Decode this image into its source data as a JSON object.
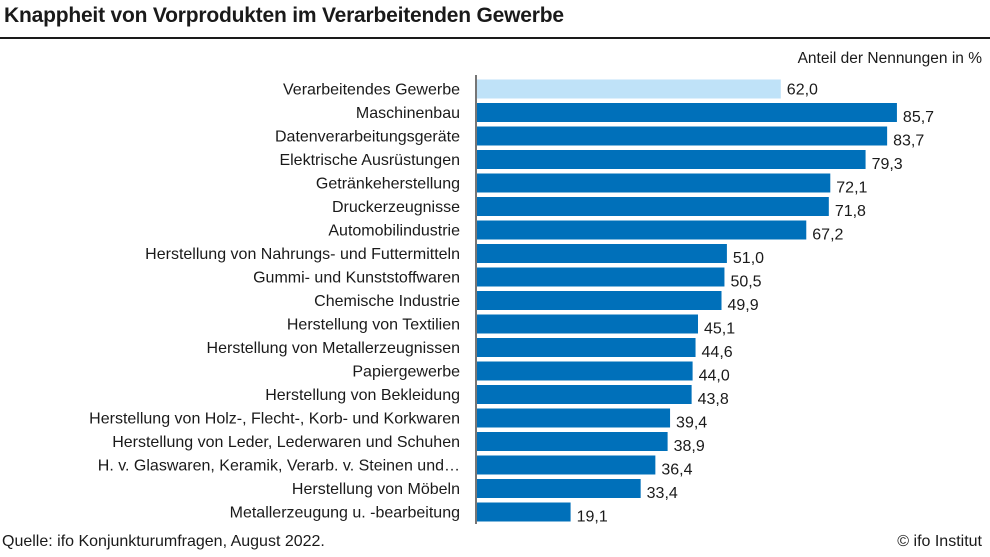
{
  "chart_data": {
    "type": "bar",
    "orientation": "horizontal",
    "title": "Knappheit von Vorprodukten im Verarbeitenden Gewerbe",
    "unit_label": "Anteil der Nennungen in %",
    "categories": [
      "Verarbeitendes Gewerbe",
      "Maschinenbau",
      "Datenverarbeitungsgeräte",
      "Elektrische Ausrüstungen",
      "Getränkeherstellung",
      "Druckerzeugnisse",
      "Automobilindustrie",
      "Herstellung von Nahrungs- und Futtermitteln",
      "Gummi- und Kunststoffwaren",
      "Chemische Industrie",
      "Herstellung von Textilien",
      "Herstellung von Metallerzeugnissen",
      "Papiergewerbe",
      "Herstellung von Bekleidung",
      "Herstellung von Holz-, Flecht-, Korb- und Korkwaren",
      "Herstellung von Leder, Lederwaren und Schuhen",
      "H. v. Glaswaren, Keramik, Verarb. v. Steinen und…",
      "Herstellung von Möbeln",
      "Metallerzeugung u. -bearbeitung"
    ],
    "values": [
      62.0,
      85.7,
      83.7,
      79.3,
      72.1,
      71.8,
      67.2,
      51.0,
      50.5,
      49.9,
      45.1,
      44.6,
      44.0,
      43.8,
      39.4,
      38.9,
      36.4,
      33.4,
      19.1
    ],
    "value_labels": [
      "62,0",
      "85,7",
      "83,7",
      "79,3",
      "72,1",
      "71,8",
      "67,2",
      "51,0",
      "50,5",
      "49,9",
      "45,1",
      "44,6",
      "44,0",
      "43,8",
      "39,4",
      "38,9",
      "36,4",
      "33,4",
      "19,1"
    ],
    "highlight_index": 0,
    "colors": {
      "highlight": "#bfe2f8",
      "bar": "#0070ba",
      "axis": "#1a1a1a"
    },
    "xlim": [
      0,
      100
    ],
    "grid": false
  },
  "footer": {
    "source": "Quelle: ifo Konjunkturumfragen, August 2022.",
    "credit": "© ifo Institut"
  }
}
